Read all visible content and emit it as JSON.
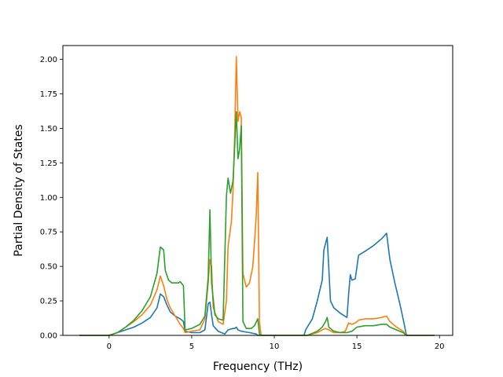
{
  "chart_data": {
    "type": "line",
    "title": "",
    "xlabel": "Frequency (THz)",
    "ylabel": "Partial Density of States",
    "xlim": [
      -2.8,
      20.8
    ],
    "ylim": [
      0.0,
      2.1
    ],
    "xticks": [
      0,
      5,
      10,
      15,
      20
    ],
    "xtick_labels": [
      "0",
      "5",
      "10",
      "15",
      "20"
    ],
    "yticks": [
      0.0,
      0.25,
      0.5,
      0.75,
      1.0,
      1.25,
      1.5,
      1.75,
      2.0
    ],
    "ytick_labels": [
      "0.00",
      "0.25",
      "0.50",
      "0.75",
      "1.00",
      "1.25",
      "1.50",
      "1.75",
      "2.00"
    ],
    "grid": false,
    "legend": false,
    "series": [
      {
        "color": "#1f77b4",
        "points": [
          [
            -1.8,
            0.0
          ],
          [
            0.0,
            0.0
          ],
          [
            0.5,
            0.02
          ],
          [
            1.0,
            0.04
          ],
          [
            1.5,
            0.06
          ],
          [
            2.0,
            0.09
          ],
          [
            2.5,
            0.13
          ],
          [
            2.9,
            0.2
          ],
          [
            3.1,
            0.3
          ],
          [
            3.3,
            0.28
          ],
          [
            3.5,
            0.22
          ],
          [
            3.7,
            0.17
          ],
          [
            4.0,
            0.14
          ],
          [
            4.3,
            0.12
          ],
          [
            4.5,
            0.1
          ],
          [
            4.6,
            0.03
          ],
          [
            5.0,
            0.02
          ],
          [
            5.5,
            0.02
          ],
          [
            5.8,
            0.04
          ],
          [
            6.0,
            0.23
          ],
          [
            6.1,
            0.24
          ],
          [
            6.2,
            0.15
          ],
          [
            6.3,
            0.07
          ],
          [
            6.6,
            0.03
          ],
          [
            7.0,
            0.01
          ],
          [
            7.2,
            0.04
          ],
          [
            7.5,
            0.05
          ],
          [
            7.6,
            0.05
          ],
          [
            7.7,
            0.06
          ],
          [
            7.8,
            0.04
          ],
          [
            8.0,
            0.03
          ],
          [
            8.5,
            0.02
          ],
          [
            8.9,
            0.01
          ],
          [
            9.0,
            0.0
          ],
          [
            11.8,
            0.0
          ],
          [
            11.9,
            0.04
          ],
          [
            12.3,
            0.12
          ],
          [
            12.6,
            0.25
          ],
          [
            12.9,
            0.4
          ],
          [
            13.0,
            0.62
          ],
          [
            13.2,
            0.71
          ],
          [
            13.3,
            0.48
          ],
          [
            13.4,
            0.25
          ],
          [
            13.6,
            0.2
          ],
          [
            14.0,
            0.16
          ],
          [
            14.4,
            0.13
          ],
          [
            14.5,
            0.3
          ],
          [
            14.6,
            0.44
          ],
          [
            14.7,
            0.4
          ],
          [
            14.9,
            0.41
          ],
          [
            15.1,
            0.58
          ],
          [
            15.5,
            0.61
          ],
          [
            16.0,
            0.65
          ],
          [
            16.5,
            0.7
          ],
          [
            16.8,
            0.74
          ],
          [
            17.0,
            0.55
          ],
          [
            17.3,
            0.38
          ],
          [
            17.6,
            0.23
          ],
          [
            17.8,
            0.12
          ],
          [
            18.0,
            0.0
          ],
          [
            19.7,
            0.0
          ]
        ]
      },
      {
        "color": "#ff7f0e",
        "points": [
          [
            -1.8,
            0.0
          ],
          [
            0.0,
            0.0
          ],
          [
            0.5,
            0.02
          ],
          [
            1.0,
            0.06
          ],
          [
            1.5,
            0.1
          ],
          [
            2.0,
            0.15
          ],
          [
            2.5,
            0.22
          ],
          [
            2.9,
            0.33
          ],
          [
            3.1,
            0.43
          ],
          [
            3.3,
            0.36
          ],
          [
            3.5,
            0.26
          ],
          [
            3.7,
            0.2
          ],
          [
            4.0,
            0.14
          ],
          [
            4.3,
            0.08
          ],
          [
            4.5,
            0.05
          ],
          [
            4.6,
            0.02
          ],
          [
            5.0,
            0.03
          ],
          [
            5.5,
            0.04
          ],
          [
            5.8,
            0.12
          ],
          [
            6.0,
            0.38
          ],
          [
            6.1,
            0.55
          ],
          [
            6.2,
            0.5
          ],
          [
            6.3,
            0.2
          ],
          [
            6.6,
            0.1
          ],
          [
            6.9,
            0.08
          ],
          [
            7.1,
            0.25
          ],
          [
            7.2,
            0.65
          ],
          [
            7.4,
            0.82
          ],
          [
            7.5,
            1.05
          ],
          [
            7.6,
            1.45
          ],
          [
            7.7,
            2.02
          ],
          [
            7.8,
            1.55
          ],
          [
            7.9,
            1.62
          ],
          [
            8.0,
            1.58
          ],
          [
            8.1,
            0.45
          ],
          [
            8.3,
            0.35
          ],
          [
            8.5,
            0.38
          ],
          [
            8.7,
            0.5
          ],
          [
            8.9,
            0.85
          ],
          [
            9.0,
            1.18
          ],
          [
            9.1,
            0.1
          ],
          [
            9.2,
            0.0
          ],
          [
            12.0,
            0.0
          ],
          [
            12.6,
            0.02
          ],
          [
            12.9,
            0.04
          ],
          [
            13.1,
            0.05
          ],
          [
            13.3,
            0.04
          ],
          [
            13.6,
            0.02
          ],
          [
            14.0,
            0.02
          ],
          [
            14.3,
            0.03
          ],
          [
            14.5,
            0.09
          ],
          [
            14.7,
            0.08
          ],
          [
            14.9,
            0.09
          ],
          [
            15.1,
            0.11
          ],
          [
            15.5,
            0.12
          ],
          [
            16.0,
            0.12
          ],
          [
            16.5,
            0.13
          ],
          [
            16.8,
            0.14
          ],
          [
            17.0,
            0.1
          ],
          [
            17.4,
            0.06
          ],
          [
            17.8,
            0.03
          ],
          [
            18.0,
            0.0
          ],
          [
            19.7,
            0.0
          ]
        ]
      },
      {
        "color": "#2ca02c",
        "points": [
          [
            -1.8,
            0.0
          ],
          [
            0.0,
            0.0
          ],
          [
            0.5,
            0.02
          ],
          [
            1.0,
            0.06
          ],
          [
            1.5,
            0.11
          ],
          [
            2.0,
            0.18
          ],
          [
            2.5,
            0.28
          ],
          [
            2.9,
            0.45
          ],
          [
            3.1,
            0.64
          ],
          [
            3.3,
            0.62
          ],
          [
            3.4,
            0.47
          ],
          [
            3.6,
            0.4
          ],
          [
            3.8,
            0.38
          ],
          [
            4.0,
            0.38
          ],
          [
            4.2,
            0.38
          ],
          [
            4.3,
            0.39
          ],
          [
            4.5,
            0.36
          ],
          [
            4.6,
            0.04
          ],
          [
            5.0,
            0.05
          ],
          [
            5.5,
            0.08
          ],
          [
            5.8,
            0.14
          ],
          [
            6.0,
            0.42
          ],
          [
            6.1,
            0.91
          ],
          [
            6.2,
            0.38
          ],
          [
            6.4,
            0.15
          ],
          [
            6.6,
            0.12
          ],
          [
            6.9,
            0.11
          ],
          [
            7.1,
            1.01
          ],
          [
            7.2,
            1.14
          ],
          [
            7.35,
            1.03
          ],
          [
            7.5,
            1.12
          ],
          [
            7.7,
            1.62
          ],
          [
            7.8,
            1.28
          ],
          [
            7.9,
            1.35
          ],
          [
            8.0,
            1.52
          ],
          [
            8.1,
            0.1
          ],
          [
            8.3,
            0.05
          ],
          [
            8.6,
            0.05
          ],
          [
            8.8,
            0.07
          ],
          [
            9.0,
            0.12
          ],
          [
            9.1,
            0.01
          ],
          [
            9.2,
            0.0
          ],
          [
            12.0,
            0.0
          ],
          [
            12.6,
            0.03
          ],
          [
            12.9,
            0.06
          ],
          [
            13.1,
            0.1
          ],
          [
            13.2,
            0.13
          ],
          [
            13.3,
            0.06
          ],
          [
            13.6,
            0.03
          ],
          [
            14.0,
            0.02
          ],
          [
            14.4,
            0.02
          ],
          [
            14.7,
            0.03
          ],
          [
            15.0,
            0.06
          ],
          [
            15.5,
            0.07
          ],
          [
            16.0,
            0.07
          ],
          [
            16.5,
            0.08
          ],
          [
            16.8,
            0.08
          ],
          [
            17.0,
            0.06
          ],
          [
            17.4,
            0.04
          ],
          [
            17.8,
            0.02
          ],
          [
            18.0,
            0.0
          ],
          [
            19.7,
            0.0
          ]
        ]
      }
    ]
  }
}
